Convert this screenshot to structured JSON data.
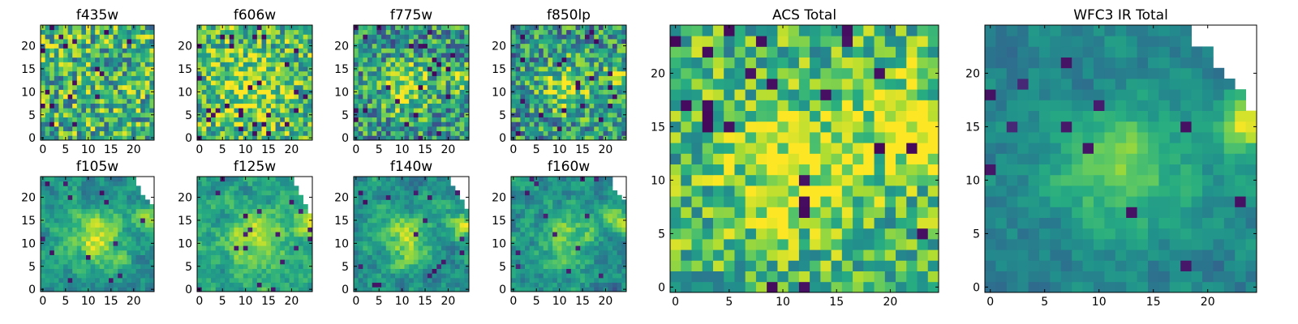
{
  "chart_data": [
    {
      "type": "heatmap",
      "title": "f435w",
      "xticks": [
        "0",
        "5",
        "10",
        "15",
        "20"
      ],
      "yticks": [
        "0",
        "5",
        "10",
        "15",
        "20"
      ],
      "xlim": [
        -0.5,
        24.5
      ],
      "ylim": [
        -0.5,
        24.5
      ],
      "n": 25,
      "seed": 11,
      "mode": "noise",
      "lo": 0.3,
      "hi": 1.0,
      "blobs": [],
      "mask": []
    },
    {
      "type": "heatmap",
      "title": "f606w",
      "xticks": [
        "0",
        "5",
        "10",
        "15",
        "20"
      ],
      "yticks": [
        "0",
        "5",
        "10",
        "15",
        "20"
      ],
      "xlim": [
        -0.5,
        24.5
      ],
      "ylim": [
        -0.5,
        24.5
      ],
      "n": 25,
      "seed": 23,
      "mode": "noise",
      "lo": 0.35,
      "hi": 1.0,
      "blobs": [
        [
          11,
          11,
          5,
          0.25
        ]
      ],
      "mask": []
    },
    {
      "type": "heatmap",
      "title": "f775w",
      "xticks": [
        "0",
        "5",
        "10",
        "15",
        "20"
      ],
      "yticks": [
        "0",
        "5",
        "10",
        "15",
        "20"
      ],
      "xlim": [
        -0.5,
        24.5
      ],
      "ylim": [
        -0.5,
        24.5
      ],
      "n": 25,
      "seed": 37,
      "mode": "noise",
      "lo": 0.2,
      "hi": 0.85,
      "blobs": [
        [
          11,
          11,
          4,
          0.35
        ],
        [
          23,
          13,
          2,
          0.35
        ]
      ],
      "mask": []
    },
    {
      "type": "heatmap",
      "title": "f850lp",
      "xticks": [
        "0",
        "5",
        "10",
        "15",
        "20"
      ],
      "yticks": [
        "0",
        "5",
        "10",
        "15",
        "20"
      ],
      "xlim": [
        -0.5,
        24.5
      ],
      "ylim": [
        -0.5,
        24.5
      ],
      "n": 25,
      "seed": 41,
      "mode": "noise",
      "lo": 0.2,
      "hi": 0.85,
      "blobs": [
        [
          12,
          11,
          4,
          0.35
        ],
        [
          23,
          13,
          2,
          0.35
        ]
      ],
      "mask": []
    },
    {
      "type": "heatmap",
      "title": "f105w",
      "xticks": [
        "0",
        "5",
        "10",
        "15",
        "20"
      ],
      "yticks": [
        "0",
        "5",
        "10",
        "15",
        "20"
      ],
      "xlim": [
        -0.5,
        24.5
      ],
      "ylim": [
        -0.5,
        24.5
      ],
      "n": 25,
      "seed": 53,
      "mode": "smooth",
      "lo": 0.25,
      "hi": 0.8,
      "blobs": [
        [
          12,
          11,
          4,
          0.4
        ],
        [
          23,
          15,
          2,
          0.35
        ]
      ],
      "mask": [
        [
          24,
          19
        ],
        [
          24,
          20
        ],
        [
          24,
          21
        ],
        [
          24,
          22
        ],
        [
          24,
          23
        ],
        [
          24,
          24
        ],
        [
          23,
          20
        ],
        [
          23,
          21
        ],
        [
          23,
          22
        ],
        [
          23,
          23
        ],
        [
          23,
          24
        ],
        [
          22,
          21
        ],
        [
          22,
          22
        ],
        [
          22,
          23
        ],
        [
          22,
          24
        ],
        [
          21,
          23
        ],
        [
          21,
          24
        ]
      ]
    },
    {
      "type": "heatmap",
      "title": "f125w",
      "xticks": [
        "0",
        "5",
        "10",
        "15",
        "20"
      ],
      "yticks": [
        "0",
        "5",
        "10",
        "15",
        "20"
      ],
      "xlim": [
        -0.5,
        24.5
      ],
      "ylim": [
        -0.5,
        24.5
      ],
      "n": 25,
      "seed": 61,
      "mode": "smooth",
      "lo": 0.3,
      "hi": 0.85,
      "blobs": [
        [
          12,
          11,
          4,
          0.35
        ],
        [
          23,
          15,
          2,
          0.35
        ]
      ],
      "mask": [
        [
          24,
          17
        ],
        [
          24,
          18
        ],
        [
          24,
          19
        ],
        [
          24,
          20
        ],
        [
          24,
          21
        ],
        [
          24,
          22
        ],
        [
          24,
          23
        ],
        [
          24,
          24
        ],
        [
          23,
          19
        ],
        [
          23,
          20
        ],
        [
          23,
          21
        ],
        [
          23,
          22
        ],
        [
          23,
          23
        ],
        [
          23,
          24
        ],
        [
          22,
          21
        ],
        [
          22,
          22
        ],
        [
          22,
          23
        ],
        [
          22,
          24
        ],
        [
          21,
          23
        ],
        [
          21,
          24
        ]
      ]
    },
    {
      "type": "heatmap",
      "title": "f140w",
      "xticks": [
        "0",
        "5",
        "10",
        "15",
        "20"
      ],
      "yticks": [
        "0",
        "5",
        "10",
        "15",
        "20"
      ],
      "xlim": [
        -0.5,
        24.5
      ],
      "ylim": [
        -0.5,
        24.5
      ],
      "n": 25,
      "seed": 71,
      "mode": "smooth",
      "lo": 0.2,
      "hi": 0.8,
      "blobs": [
        [
          11,
          11,
          4,
          0.35
        ],
        [
          23,
          14,
          2,
          0.4
        ]
      ],
      "mask": [
        [
          24,
          18
        ],
        [
          24,
          19
        ],
        [
          24,
          20
        ],
        [
          24,
          21
        ],
        [
          24,
          22
        ],
        [
          24,
          23
        ],
        [
          24,
          24
        ],
        [
          23,
          20
        ],
        [
          23,
          21
        ],
        [
          23,
          22
        ],
        [
          23,
          23
        ],
        [
          23,
          24
        ],
        [
          22,
          22
        ],
        [
          22,
          23
        ],
        [
          22,
          24
        ],
        [
          21,
          23
        ],
        [
          21,
          24
        ]
      ]
    },
    {
      "type": "heatmap",
      "title": "f160w",
      "xticks": [
        "0",
        "5",
        "10",
        "15",
        "20"
      ],
      "yticks": [
        "0",
        "5",
        "10",
        "15",
        "20"
      ],
      "xlim": [
        -0.5,
        24.5
      ],
      "ylim": [
        -0.5,
        24.5
      ],
      "n": 25,
      "seed": 83,
      "mode": "smooth",
      "lo": 0.2,
      "hi": 0.8,
      "blobs": [
        [
          12,
          11,
          4,
          0.35
        ],
        [
          23,
          15,
          2,
          0.4
        ]
      ],
      "mask": [
        [
          24,
          20
        ],
        [
          24,
          21
        ],
        [
          24,
          22
        ],
        [
          24,
          23
        ],
        [
          24,
          24
        ],
        [
          23,
          21
        ],
        [
          23,
          22
        ],
        [
          23,
          23
        ],
        [
          23,
          24
        ],
        [
          22,
          22
        ],
        [
          22,
          23
        ],
        [
          22,
          24
        ]
      ]
    },
    {
      "type": "heatmap",
      "title": "ACS Total",
      "xticks": [
        "0",
        "5",
        "10",
        "15",
        "20"
      ],
      "yticks": [
        "0",
        "5",
        "10",
        "15",
        "20"
      ],
      "xlim": [
        -0.5,
        24.5
      ],
      "ylim": [
        -0.5,
        24.5
      ],
      "n": 25,
      "seed": 97,
      "mode": "noise",
      "lo": 0.4,
      "hi": 0.95,
      "blobs": [
        [
          11,
          11,
          4,
          0.3
        ],
        [
          23,
          13,
          2,
          0.3
        ],
        [
          20,
          17,
          3,
          0.2
        ]
      ],
      "mask": []
    },
    {
      "type": "heatmap",
      "title": "WFC3 IR Total",
      "xticks": [
        "0",
        "5",
        "10",
        "15",
        "20"
      ],
      "yticks": [
        "0",
        "5",
        "10",
        "15",
        "20"
      ],
      "xlim": [
        -0.5,
        24.5
      ],
      "ylim": [
        -0.5,
        24.5
      ],
      "n": 25,
      "seed": 109,
      "mode": "smooth",
      "lo": 0.25,
      "hi": 0.65,
      "blobs": [
        [
          12,
          11,
          4,
          0.4
        ],
        [
          24,
          15,
          2,
          0.5
        ]
      ],
      "mask": [
        [
          24,
          17
        ],
        [
          24,
          18
        ],
        [
          24,
          19
        ],
        [
          24,
          20
        ],
        [
          24,
          21
        ],
        [
          24,
          22
        ],
        [
          24,
          23
        ],
        [
          24,
          24
        ],
        [
          23,
          19
        ],
        [
          23,
          20
        ],
        [
          23,
          21
        ],
        [
          23,
          22
        ],
        [
          23,
          23
        ],
        [
          23,
          24
        ],
        [
          22,
          20
        ],
        [
          22,
          21
        ],
        [
          22,
          22
        ],
        [
          22,
          23
        ],
        [
          22,
          24
        ],
        [
          21,
          21
        ],
        [
          21,
          22
        ],
        [
          21,
          23
        ],
        [
          21,
          24
        ],
        [
          20,
          23
        ],
        [
          20,
          24
        ],
        [
          19,
          23
        ],
        [
          19,
          24
        ]
      ]
    }
  ]
}
